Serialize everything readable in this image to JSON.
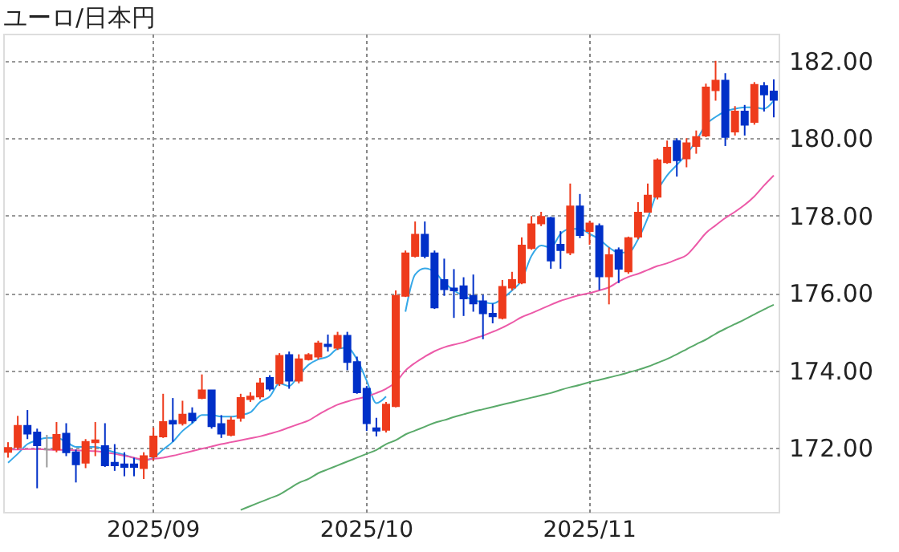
{
  "chart_data": {
    "type": "candlestick",
    "title": "ユーロ/日本円",
    "categories": [
      null,
      null,
      null,
      null,
      null,
      null,
      null,
      null,
      null,
      null,
      null,
      null,
      null,
      null,
      null,
      "2025/09",
      null,
      null,
      null,
      null,
      null,
      null,
      null,
      null,
      null,
      null,
      null,
      null,
      null,
      null,
      null,
      null,
      null,
      null,
      null,
      null,
      null,
      "2025/10",
      null,
      null,
      null,
      null,
      null,
      null,
      null,
      null,
      null,
      null,
      null,
      null,
      null,
      null,
      null,
      null,
      null,
      null,
      null,
      null,
      null,
      null,
      "2025/11",
      null,
      null,
      null,
      null,
      null,
      null,
      null,
      null,
      null,
      null,
      null,
      null,
      null,
      null,
      null,
      null,
      null,
      null,
      null
    ],
    "ohlc": [
      [
        171.9,
        172.15,
        171.75,
        172.0
      ],
      [
        172.03,
        172.83,
        171.96,
        172.57
      ],
      [
        172.57,
        172.98,
        172.23,
        172.37
      ],
      [
        172.4,
        172.5,
        170.96,
        172.07
      ],
      [
        171.96,
        172.34,
        171.5,
        171.96
      ],
      [
        171.96,
        172.67,
        171.89,
        172.34
      ],
      [
        172.37,
        172.64,
        171.79,
        171.89
      ],
      [
        171.89,
        171.96,
        171.11,
        171.58
      ],
      [
        171.62,
        172.23,
        171.48,
        172.16
      ],
      [
        172.15,
        172.67,
        171.79,
        172.2
      ],
      [
        172.05,
        172.64,
        171.51,
        171.55
      ],
      [
        171.62,
        172.1,
        171.41,
        171.55
      ],
      [
        171.58,
        171.89,
        171.27,
        171.51
      ],
      [
        171.58,
        171.75,
        171.27,
        171.51
      ],
      [
        171.48,
        171.89,
        171.2,
        171.79
      ],
      [
        171.78,
        172.53,
        171.68,
        172.3
      ],
      [
        172.3,
        173.4,
        172.26,
        172.67
      ],
      [
        172.7,
        173.29,
        172.16,
        172.63
      ],
      [
        172.64,
        173.22,
        172.58,
        172.86
      ],
      [
        172.89,
        173.05,
        172.64,
        172.71
      ],
      [
        173.29,
        173.9,
        173.26,
        173.49
      ],
      [
        173.49,
        173.49,
        172.5,
        172.56
      ],
      [
        172.62,
        172.85,
        172.26,
        172.37
      ],
      [
        172.34,
        172.81,
        172.3,
        172.71
      ],
      [
        172.78,
        173.4,
        172.68,
        173.29
      ],
      [
        173.26,
        173.44,
        173.19,
        173.33
      ],
      [
        173.33,
        173.81,
        173.26,
        173.67
      ],
      [
        173.81,
        173.88,
        173.47,
        173.53
      ],
      [
        173.67,
        174.45,
        173.6,
        174.38
      ],
      [
        174.4,
        174.49,
        173.53,
        173.74
      ],
      [
        173.74,
        174.42,
        173.67,
        174.29
      ],
      [
        174.29,
        174.45,
        174.26,
        174.4
      ],
      [
        174.36,
        174.77,
        174.29,
        174.7
      ],
      [
        174.67,
        174.93,
        174.49,
        174.63
      ],
      [
        174.59,
        175.0,
        174.53,
        174.9
      ],
      [
        174.9,
        175.0,
        174.01,
        174.22
      ],
      [
        174.22,
        174.36,
        173.4,
        173.44
      ],
      [
        173.53,
        173.6,
        172.44,
        172.64
      ],
      [
        172.51,
        172.78,
        172.3,
        172.45
      ],
      [
        172.47,
        173.19,
        172.4,
        173.12
      ],
      [
        173.08,
        176.07,
        173.05,
        175.93
      ],
      [
        175.93,
        177.1,
        175.9,
        177.03
      ],
      [
        176.96,
        177.85,
        176.92,
        177.51
      ],
      [
        177.51,
        177.85,
        176.9,
        176.96
      ],
      [
        177.03,
        177.1,
        175.59,
        175.63
      ],
      [
        176.34,
        176.89,
        175.93,
        176.1
      ],
      [
        176.12,
        176.62,
        175.36,
        176.07
      ],
      [
        176.18,
        176.41,
        175.41,
        175.86
      ],
      [
        175.93,
        176.48,
        175.52,
        175.73
      ],
      [
        175.79,
        175.96,
        174.81,
        175.48
      ],
      [
        175.47,
        175.73,
        175.22,
        175.4
      ],
      [
        175.36,
        176.34,
        175.32,
        176.16
      ],
      [
        176.14,
        176.55,
        176.07,
        176.34
      ],
      [
        176.27,
        177.44,
        176.23,
        177.23
      ],
      [
        177.16,
        177.99,
        177.12,
        177.78
      ],
      [
        177.8,
        178.1,
        177.73,
        177.97
      ],
      [
        177.94,
        177.97,
        176.63,
        176.84
      ],
      [
        177.25,
        177.6,
        176.63,
        177.11
      ],
      [
        177.05,
        178.83,
        176.98,
        178.24
      ],
      [
        178.24,
        178.56,
        177.42,
        177.5
      ],
      [
        177.6,
        177.87,
        177.25,
        177.8
      ],
      [
        177.73,
        177.8,
        176.08,
        176.43
      ],
      [
        176.43,
        177.18,
        175.71,
        176.98
      ],
      [
        177.11,
        177.18,
        176.26,
        176.63
      ],
      [
        176.56,
        177.46,
        176.5,
        177.42
      ],
      [
        177.46,
        178.35,
        177.39,
        178.08
      ],
      [
        178.1,
        178.83,
        178.08,
        178.52
      ],
      [
        178.49,
        179.48,
        178.42,
        179.43
      ],
      [
        179.38,
        179.94,
        179.34,
        179.76
      ],
      [
        179.93,
        180.0,
        179.01,
        179.43
      ],
      [
        179.48,
        180.0,
        179.25,
        179.87
      ],
      [
        179.8,
        180.2,
        179.6,
        180.03
      ],
      [
        180.07,
        181.41,
        180.03,
        181.31
      ],
      [
        181.24,
        182.0,
        180.97,
        181.49
      ],
      [
        181.49,
        181.68,
        179.8,
        180.03
      ],
      [
        180.17,
        180.83,
        180.07,
        180.69
      ],
      [
        180.69,
        180.86,
        180.07,
        180.35
      ],
      [
        180.42,
        181.45,
        180.35,
        181.38
      ],
      [
        181.35,
        181.45,
        180.69,
        181.13
      ],
      [
        181.21,
        181.52,
        180.54,
        180.99
      ]
    ],
    "colors": [
      "#ee3b1c",
      "#ee3b1c",
      "#0030c8",
      "#0030c8",
      "#999999",
      "#ee3b1c",
      "#0030c8",
      "#0030c8",
      "#ee3b1c",
      "#ee3b1c",
      "#0030c8",
      "#0030c8",
      "#0030c8",
      "#0030c8",
      "#ee3b1c",
      "#ee3b1c",
      "#ee3b1c",
      "#0030c8",
      "#ee3b1c",
      "#0030c8",
      "#ee3b1c",
      "#0030c8",
      "#0030c8",
      "#ee3b1c",
      "#ee3b1c",
      "#ee3b1c",
      "#ee3b1c",
      "#0030c8",
      "#ee3b1c",
      "#0030c8",
      "#ee3b1c",
      "#ee3b1c",
      "#ee3b1c",
      "#0030c8",
      "#ee3b1c",
      "#0030c8",
      "#0030c8",
      "#0030c8",
      "#0030c8",
      "#ee3b1c",
      "#ee3b1c",
      "#ee3b1c",
      "#ee3b1c",
      "#0030c8",
      "#0030c8",
      "#0030c8",
      "#0030c8",
      "#0030c8",
      "#0030c8",
      "#0030c8",
      "#0030c8",
      "#ee3b1c",
      "#ee3b1c",
      "#ee3b1c",
      "#ee3b1c",
      "#ee3b1c",
      "#0030c8",
      "#0030c8",
      "#ee3b1c",
      "#0030c8",
      "#ee3b1c",
      "#0030c8",
      "#ee3b1c",
      "#0030c8",
      "#ee3b1c",
      "#ee3b1c",
      "#ee3b1c",
      "#ee3b1c",
      "#ee3b1c",
      "#0030c8",
      "#ee3b1c",
      "#ee3b1c",
      "#ee3b1c",
      "#ee3b1c",
      "#0030c8",
      "#ee3b1c",
      "#0030c8",
      "#ee3b1c",
      "#0030c8",
      "#0030c8"
    ],
    "series": [
      {
        "type": "line",
        "color": "#35a8e8",
        "values": [
          171.62,
          171.85,
          172.1,
          172.2,
          172.26,
          172.26,
          172.16,
          172.03,
          172.03,
          172.03,
          171.96,
          171.89,
          171.82,
          171.74,
          171.68,
          171.75,
          171.96,
          172.16,
          172.44,
          172.64,
          172.85,
          172.85,
          172.81,
          172.81,
          172.85,
          172.92,
          173.19,
          173.33,
          173.67,
          173.6,
          173.88,
          174.15,
          174.29,
          174.36,
          174.56,
          174.59,
          174.29,
          173.74,
          173.16,
          173.33,
          null,
          175.52,
          176.48,
          176.64,
          176.55,
          176.27,
          176.07,
          175.93,
          175.82,
          175.77,
          175.73,
          175.86,
          176.07,
          176.34,
          176.96,
          177.23,
          177.18,
          177.53,
          177.66,
          177.66,
          177.53,
          177.39,
          177.18,
          177.05,
          177.05,
          177.39,
          177.94,
          178.63,
          179.04,
          179.31,
          179.59,
          179.93,
          180.35,
          180.55,
          180.69,
          180.76,
          180.8,
          180.8,
          180.76,
          180.97
        ]
      },
      {
        "type": "line",
        "color": "#ec5aa8",
        "values": [
          171.96,
          171.96,
          171.97,
          171.97,
          171.96,
          171.95,
          171.95,
          171.94,
          171.93,
          171.92,
          171.89,
          171.85,
          171.8,
          171.75,
          171.7,
          171.72,
          171.75,
          171.8,
          171.86,
          171.92,
          171.98,
          172.04,
          172.1,
          172.15,
          172.2,
          172.25,
          172.3,
          172.37,
          172.44,
          172.53,
          172.62,
          172.71,
          172.86,
          173.0,
          173.12,
          173.2,
          173.27,
          173.33,
          173.42,
          173.53,
          173.7,
          174.0,
          174.2,
          174.36,
          174.5,
          174.6,
          174.67,
          174.73,
          174.82,
          174.9,
          175.0,
          175.11,
          175.24,
          175.38,
          175.48,
          175.59,
          175.7,
          175.8,
          175.88,
          175.95,
          176.0,
          176.07,
          176.15,
          176.3,
          176.42,
          176.5,
          176.6,
          176.7,
          176.77,
          176.87,
          176.98,
          177.25,
          177.55,
          177.75,
          177.94,
          178.1,
          178.28,
          178.5,
          178.78,
          179.04
        ]
      },
      {
        "type": "line",
        "color": "#5aaa6a",
        "values": [
          null,
          null,
          null,
          null,
          null,
          null,
          null,
          null,
          null,
          null,
          null,
          null,
          null,
          null,
          null,
          null,
          null,
          null,
          null,
          null,
          null,
          null,
          null,
          null,
          170.4,
          170.5,
          170.6,
          170.7,
          170.8,
          170.95,
          171.1,
          171.2,
          171.35,
          171.45,
          171.55,
          171.65,
          171.75,
          171.85,
          171.95,
          172.1,
          172.2,
          172.35,
          172.45,
          172.55,
          172.65,
          172.72,
          172.8,
          172.87,
          172.94,
          173.0,
          173.06,
          173.12,
          173.18,
          173.24,
          173.3,
          173.36,
          173.42,
          173.5,
          173.57,
          173.63,
          173.7,
          173.76,
          173.82,
          173.88,
          173.95,
          174.02,
          174.1,
          174.2,
          174.3,
          174.42,
          174.55,
          174.68,
          174.8,
          174.95,
          175.08,
          175.2,
          175.32,
          175.45,
          175.58,
          175.7
        ]
      }
    ],
    "ylim": [
      170.35,
      182.7
    ],
    "yticks": [
      {
        "value": 172,
        "label": "172.00"
      },
      {
        "value": 174,
        "label": "174.00"
      },
      {
        "value": 176,
        "label": "176.00"
      },
      {
        "value": 178,
        "label": "178.00"
      },
      {
        "value": 180,
        "label": "180.00"
      },
      {
        "value": 182,
        "label": "182.00"
      }
    ],
    "grid": true
  }
}
